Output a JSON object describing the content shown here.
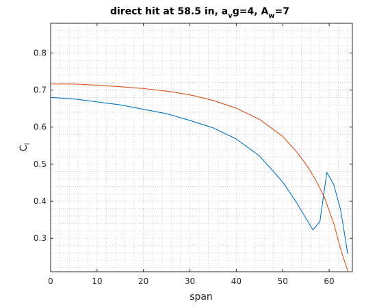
{
  "chart_data": {
    "type": "line",
    "title": {
      "parts": [
        {
          "text": "direct hit at 58.5 in, a",
          "shift": "none"
        },
        {
          "text": "v",
          "shift": "sub"
        },
        {
          "text": "g=4, A",
          "shift": "none"
        },
        {
          "text": "w",
          "shift": "sub"
        },
        {
          "text": "=7",
          "shift": "none"
        }
      ]
    },
    "xlabel": "span",
    "ylabel": {
      "main": "C",
      "sub": "l"
    },
    "xlim": [
      0,
      65
    ],
    "ylim": [
      0.21,
      0.88
    ],
    "xticks": [
      0,
      10,
      20,
      30,
      40,
      50,
      60
    ],
    "yticks": [
      0.3,
      0.4,
      0.5,
      0.6,
      0.7,
      0.8
    ],
    "grid": "minor-dotted",
    "series": [
      {
        "color": "#0072BD",
        "x": [
          0,
          5,
          10,
          15,
          20,
          25,
          30,
          35,
          40,
          45,
          50,
          53,
          55,
          56.5,
          58,
          59.5,
          61,
          62.5,
          64
        ],
        "y": [
          0.68,
          0.676,
          0.668,
          0.66,
          0.648,
          0.636,
          0.618,
          0.598,
          0.568,
          0.522,
          0.452,
          0.396,
          0.354,
          0.323,
          0.345,
          0.478,
          0.445,
          0.375,
          0.258
        ]
      },
      {
        "color": "#D95319",
        "x": [
          0,
          5,
          10,
          15,
          20,
          25,
          30,
          35,
          40,
          45,
          50,
          53,
          55,
          57,
          59,
          61,
          62.5,
          64
        ],
        "y": [
          0.716,
          0.716,
          0.713,
          0.709,
          0.704,
          0.697,
          0.687,
          0.672,
          0.651,
          0.621,
          0.575,
          0.533,
          0.5,
          0.46,
          0.41,
          0.34,
          0.27,
          0.212
        ]
      }
    ]
  }
}
